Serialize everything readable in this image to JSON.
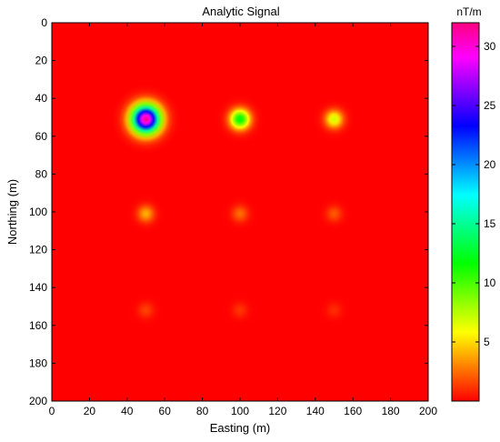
{
  "chart_data": {
    "type": "heatmap",
    "title": "Analytic Signal",
    "xlabel": "Easting (m)",
    "ylabel": "Northing (m)",
    "xlim": [
      0,
      200
    ],
    "ylim": [
      0,
      200
    ],
    "y_axis_reversed": true,
    "xticks": [
      "0",
      "20",
      "40",
      "60",
      "80",
      "100",
      "120",
      "140",
      "160",
      "180",
      "200"
    ],
    "yticks": [
      "0",
      "20",
      "40",
      "60",
      "80",
      "100",
      "120",
      "140",
      "160",
      "180",
      "200"
    ],
    "colorbar": {
      "unit_label": "nT/m",
      "range": [
        0,
        32
      ],
      "ticks": [
        "5",
        "10",
        "15",
        "20",
        "25",
        "30"
      ],
      "colormap": "hsv-jet-like (red → orange → yellow → green → cyan → blue → magenta → red)"
    },
    "background_value": 0,
    "anomalies": [
      {
        "easting": 50,
        "northing": 51,
        "peak": 32
      },
      {
        "easting": 100,
        "northing": 51,
        "peak": 12
      },
      {
        "easting": 150,
        "northing": 51,
        "peak": 7
      },
      {
        "easting": 50,
        "northing": 101,
        "peak": 4
      },
      {
        "easting": 100,
        "northing": 101,
        "peak": 2.5
      },
      {
        "easting": 150,
        "northing": 101,
        "peak": 2
      },
      {
        "easting": 50,
        "northing": 152,
        "peak": 1.5
      },
      {
        "easting": 100,
        "northing": 152,
        "peak": 1.2
      },
      {
        "easting": 150,
        "northing": 152,
        "peak": 1
      }
    ]
  }
}
